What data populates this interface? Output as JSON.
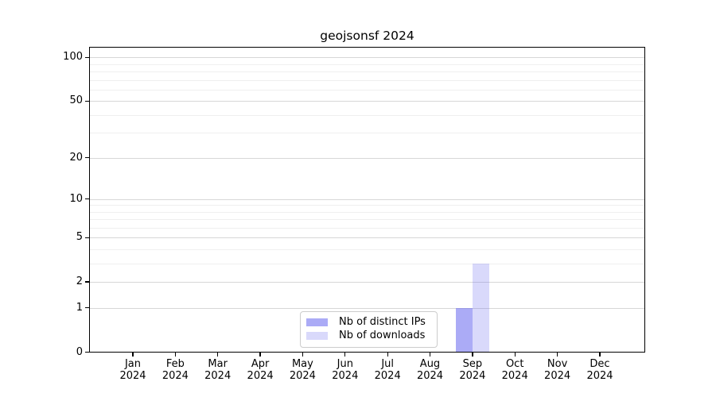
{
  "chart_data": {
    "type": "bar",
    "title": "geojsonsf 2024",
    "categories": [
      "Jan",
      "Feb",
      "Mar",
      "Apr",
      "May",
      "Jun",
      "Jul",
      "Aug",
      "Sep",
      "Oct",
      "Nov",
      "Dec"
    ],
    "x_tick_year": "2024",
    "series": [
      {
        "name": "Nb of distinct IPs",
        "color_hex": "#ababf5",
        "fill": "rgba(102,102,238,0.55)",
        "values": [
          0,
          0,
          0,
          0,
          0,
          0,
          0,
          0,
          1,
          0,
          0,
          0
        ]
      },
      {
        "name": "Nb of downloads",
        "color_hex": "#d9d9fa",
        "fill": "rgba(102,102,238,0.25)",
        "values": [
          0,
          0,
          0,
          0,
          0,
          0,
          0,
          0,
          3,
          0,
          0,
          0
        ]
      }
    ],
    "y_scale": "log1p",
    "y_ticks": [
      0,
      1,
      2,
      5,
      10,
      20,
      50,
      100
    ],
    "y_minor_gridlines": [
      3,
      4,
      6,
      7,
      8,
      9,
      30,
      40,
      60,
      70,
      80,
      90
    ],
    "ylim": [
      0,
      118
    ],
    "xlabel": "",
    "ylabel": "",
    "grid": "horizontal",
    "legend_position": "lower center",
    "axis_color": "#000000",
    "major_grid_color": "#d7d7d7",
    "minor_grid_color": "#efefef",
    "background_color": "#ffffff"
  }
}
